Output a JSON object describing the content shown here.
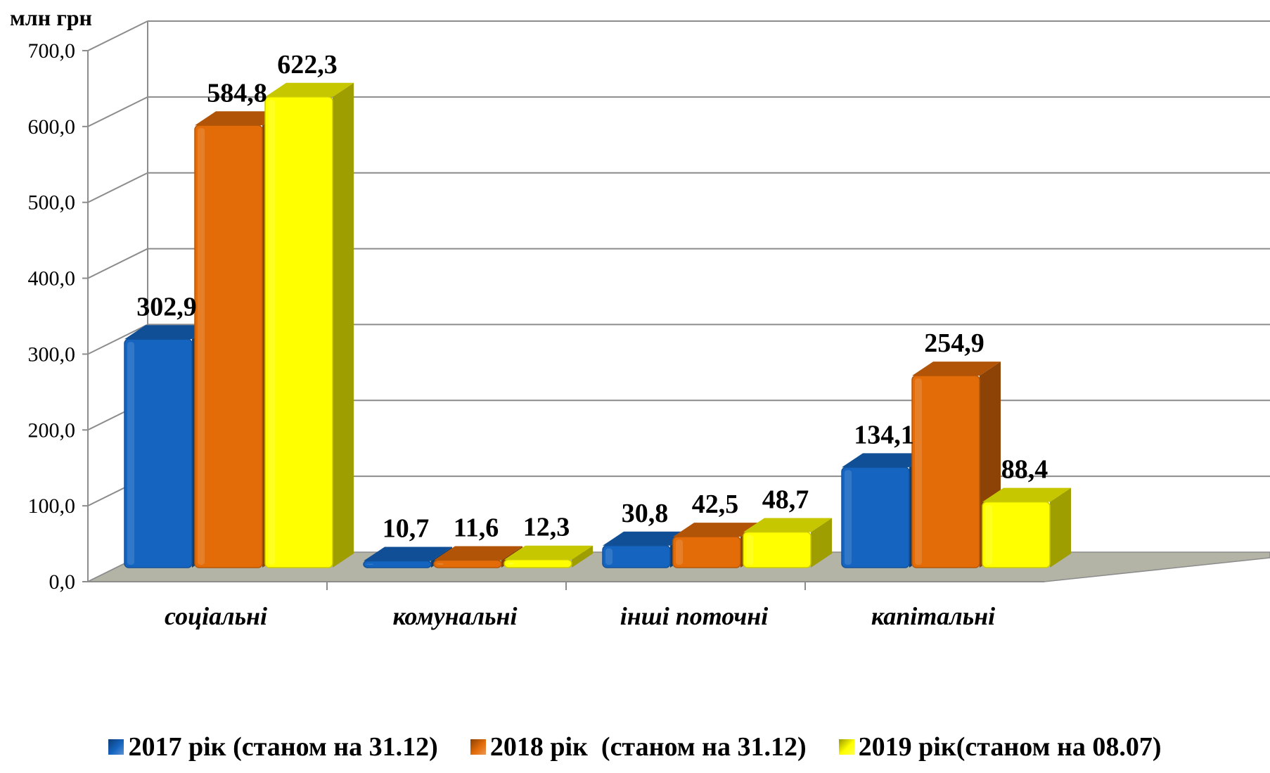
{
  "chart_data": {
    "type": "bar",
    "unit_label": "млн грн",
    "categories": [
      "соціальні",
      "комунальні",
      "інші поточні",
      "капітальні"
    ],
    "series": [
      {
        "name": "2017 рік (станом на 31.12)",
        "values": [
          302.9,
          10.7,
          30.8,
          134.1
        ],
        "labels": [
          "302,9",
          "10,7",
          "30,8",
          "134,1"
        ],
        "color": "#1565c0"
      },
      {
        "name": "2018 рік  (станом на 31.12)",
        "values": [
          584.8,
          11.6,
          42.5,
          254.9
        ],
        "labels": [
          "584,8",
          "11,6",
          "42,5",
          "254,9"
        ],
        "color": "#e36c09"
      },
      {
        "name": "2019 рік(станом на 08.07)",
        "values": [
          622.3,
          12.3,
          48.7,
          88.4
        ],
        "labels": [
          "622,3",
          "12,3",
          "48,7",
          "88,4"
        ],
        "color": "#ffff00"
      }
    ],
    "ylim": [
      0,
      700
    ],
    "yticks": [
      "0,0",
      "100,0",
      "200,0",
      "300,0",
      "400,0",
      "500,0",
      "600,0",
      "700,0"
    ],
    "grid": true,
    "legend_position": "bottom"
  }
}
